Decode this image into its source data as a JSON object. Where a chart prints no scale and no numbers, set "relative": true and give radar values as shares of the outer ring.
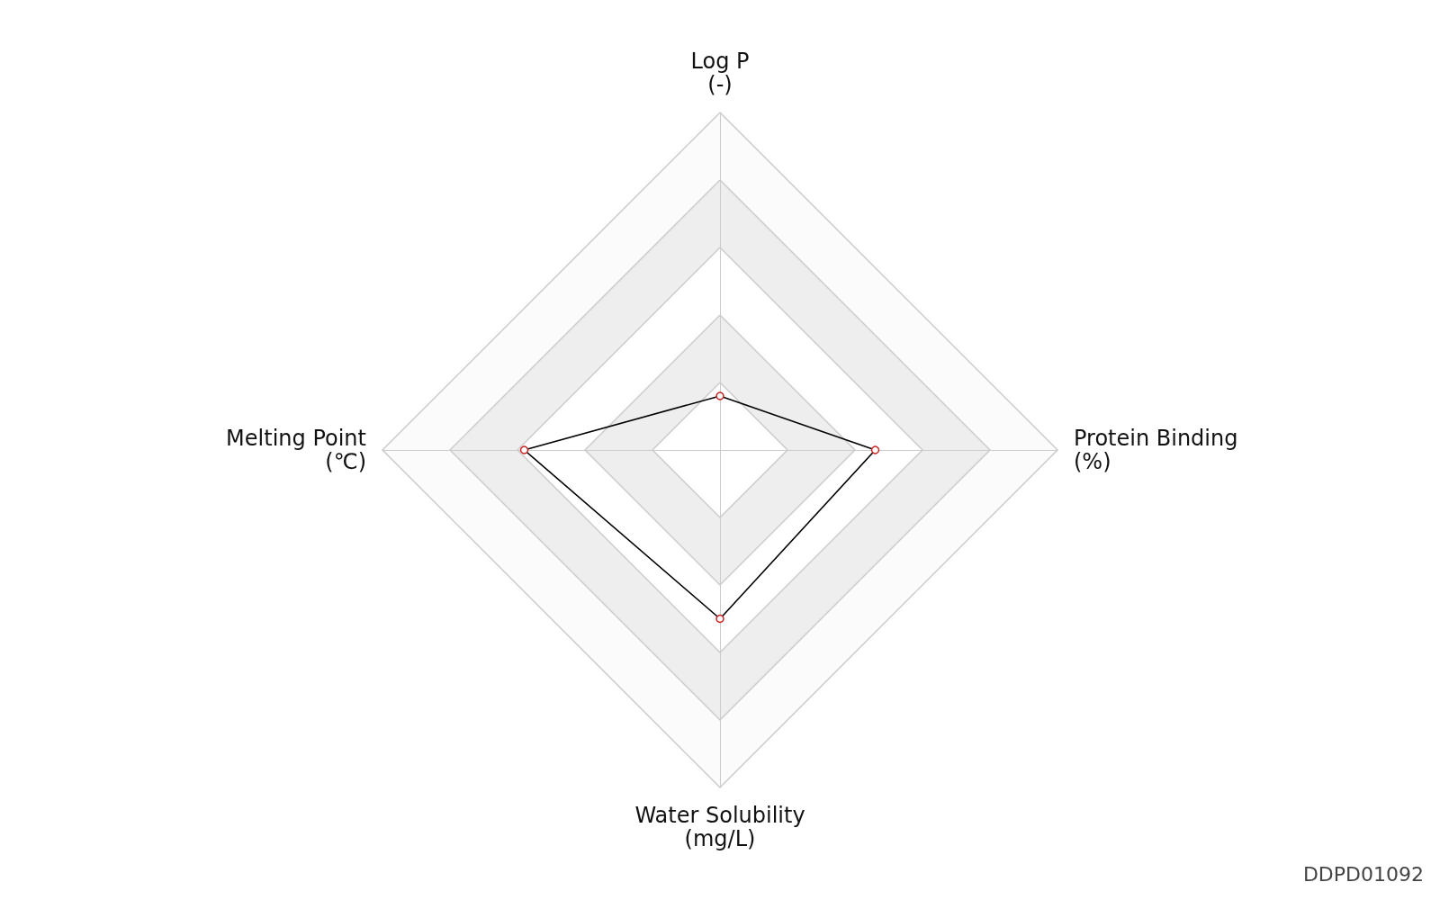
{
  "chart_data": {
    "type": "radar",
    "relative": true,
    "categories": [
      "Log P\n(-)",
      "Protein Binding\n(%)",
      "Water Solubility\n(mg/L)",
      "Melting Point\n(℃)"
    ],
    "series": [
      {
        "color": "#000000",
        "values": [
          0.16,
          0.46,
          0.5,
          0.58
        ]
      }
    ],
    "marker": "circle",
    "line_style": "solid",
    "annotations": [
      "DDPD01092"
    ]
  }
}
